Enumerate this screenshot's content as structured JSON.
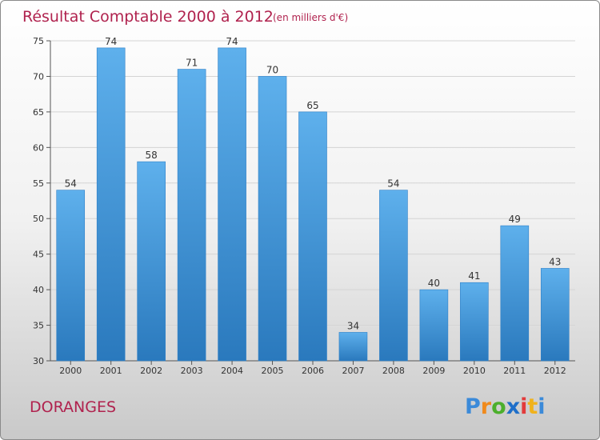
{
  "chart_data": {
    "type": "bar",
    "title": "Résultat Comptable 2000 à 2012",
    "units": "(en milliers d'€)",
    "categories": [
      "2000",
      "2001",
      "2002",
      "2003",
      "2004",
      "2005",
      "2006",
      "2007",
      "2008",
      "2009",
      "2010",
      "2011",
      "2012"
    ],
    "values": [
      54,
      74,
      58,
      71,
      74,
      70,
      65,
      34,
      54,
      40,
      41,
      49,
      43
    ],
    "ylim": [
      30,
      75
    ],
    "yticks": [
      30,
      35,
      40,
      45,
      50,
      55,
      60,
      65,
      70,
      75
    ],
    "grid": true,
    "bar_color": "#4a9ee0",
    "xlabel": "",
    "ylabel": ""
  },
  "location": "DORANGES",
  "brand": {
    "letters": [
      "P",
      "r",
      "o",
      "x",
      "i",
      "t",
      "i"
    ],
    "colors": [
      "#3b8ad9",
      "#f08a1c",
      "#4caf2c",
      "#1f6fc9",
      "#e23b3b",
      "#f0b21c",
      "#3b8ad9"
    ]
  }
}
